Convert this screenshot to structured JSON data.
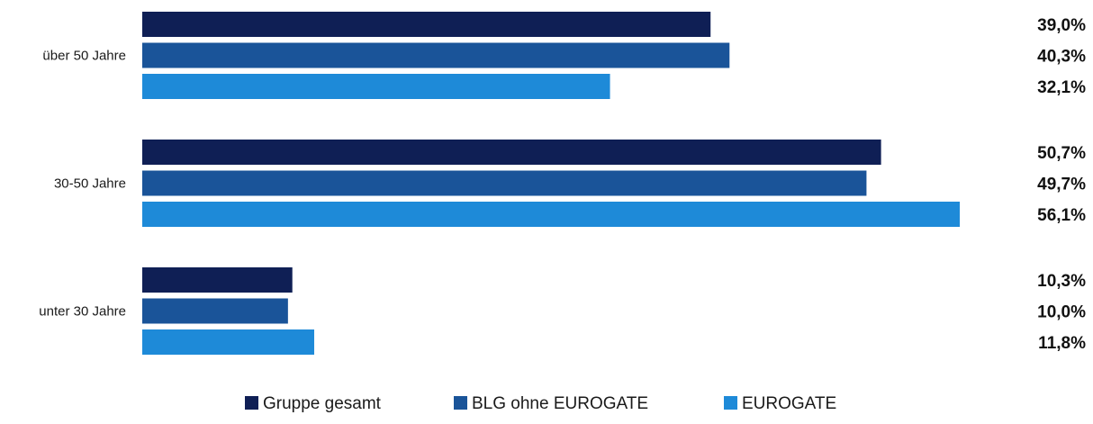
{
  "chart_data": {
    "type": "bar",
    "orientation": "horizontal",
    "categories": [
      "über 50 Jahre",
      "30-50 Jahre",
      "unter 30 Jahre"
    ],
    "series": [
      {
        "name": "Gruppe gesamt",
        "color": "#0f1f55",
        "values": [
          39.0,
          50.7,
          10.3
        ],
        "labels": [
          "39,0%",
          "50,7%",
          "10,3%"
        ]
      },
      {
        "name": "BLG ohne EUROGATE",
        "color": "#1a5499",
        "values": [
          40.3,
          49.7,
          10.0
        ],
        "labels": [
          "40,3%",
          "49,7%",
          "10,0%"
        ]
      },
      {
        "name": "EUROGATE",
        "color": "#1e8ad8",
        "values": [
          32.1,
          56.1,
          11.8
        ],
        "labels": [
          "32,1%",
          "56,1%",
          "11,8%"
        ]
      }
    ],
    "xlim": [
      0,
      56.1
    ],
    "grid": false,
    "legend_position": "bottom",
    "unit": "%"
  }
}
